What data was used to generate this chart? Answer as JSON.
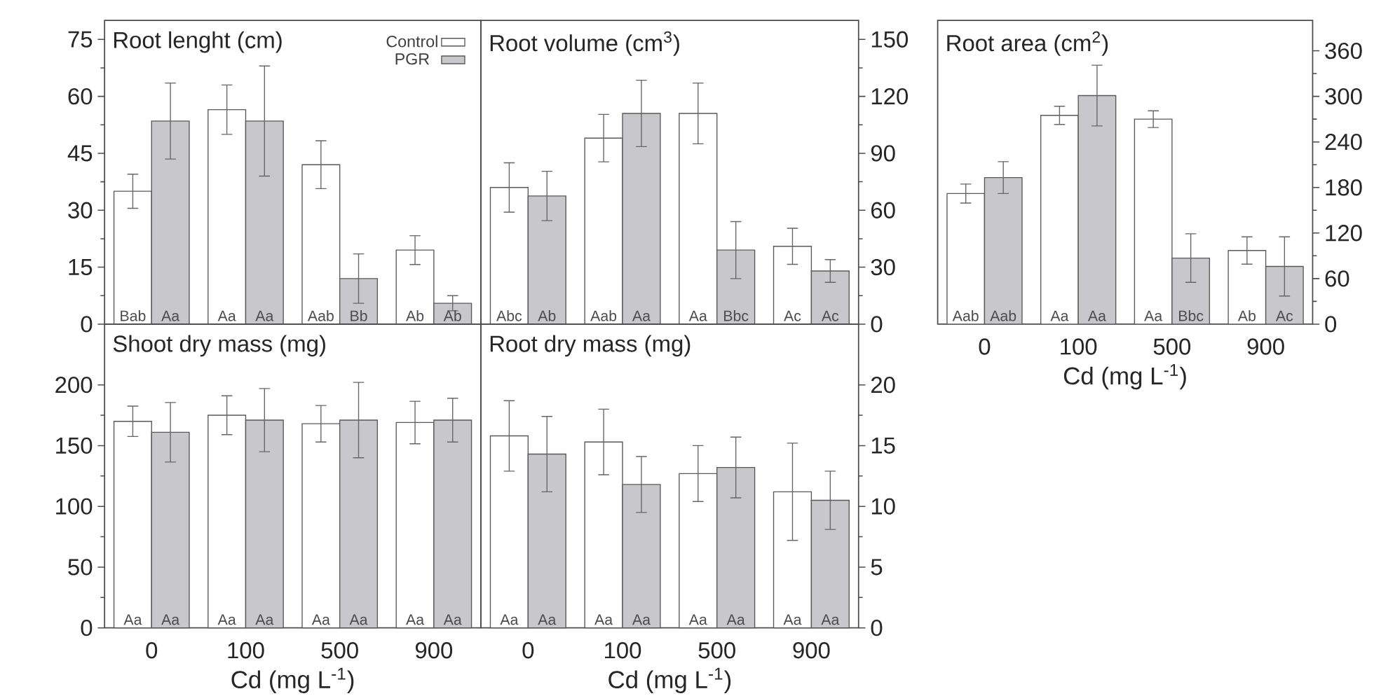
{
  "chart_data": [
    {
      "type": "bar",
      "title": "Root lenght (cm)",
      "categories": [
        "0",
        "100",
        "500",
        "900"
      ],
      "tick_labels": "y",
      "legend": "top right",
      "ylim": [
        0,
        80
      ],
      "yticks": [
        0,
        15,
        30,
        45,
        60,
        75
      ],
      "series": [
        {
          "name": "Control",
          "color": "#ffffff",
          "values": [
            35,
            56.5,
            42,
            19.5
          ],
          "errors": [
            4.5,
            6.5,
            6.3,
            3.8
          ],
          "value_labels": [
            "Bab",
            "Aa",
            "Aab",
            "Ab"
          ]
        },
        {
          "name": "PGR",
          "color": "#c8c8cc",
          "values": [
            53.5,
            53.5,
            12,
            5.5
          ],
          "errors": [
            10,
            14.5,
            6.5,
            2
          ],
          "value_labels": [
            "Aa",
            "Aa",
            "Bb",
            "Ab"
          ]
        }
      ]
    },
    {
      "type": "bar",
      "title": "Root volume (cm$^{3}$)",
      "categories": [
        "0",
        "100",
        "500",
        "900"
      ],
      "tick_labels": "y",
      "y2lim": [
        0,
        160
      ],
      "y2ticks": [
        0,
        30,
        60,
        90,
        120,
        150
      ],
      "series": [
        {
          "color": "#ffffff",
          "axis": "y2",
          "values": [
            72,
            98,
            111,
            41
          ],
          "errors": [
            13,
            12.5,
            16,
            9.5
          ],
          "value_labels": [
            "Abc",
            "Aab",
            "Aa",
            "Ac"
          ]
        },
        {
          "color": "#c8c8cc",
          "axis": "y2",
          "values": [
            67.5,
            111,
            39,
            28
          ],
          "errors": [
            13,
            17.5,
            15,
            6
          ],
          "value_labels": [
            "Ab",
            "Aa",
            "Bbc",
            "Ac"
          ]
        }
      ]
    },
    {
      "type": "bar",
      "title": "Root area (cm$^{2}$)",
      "xlabel": "Cd (mg L$^{-1}$)",
      "categories": [
        "0",
        "100",
        "500",
        "900"
      ],
      "y2lim": [
        0,
        400
      ],
      "y2ticks": [
        0,
        60,
        120,
        180,
        240,
        300,
        360
      ],
      "series": [
        {
          "color": "#ffffff",
          "axis": "y2",
          "values": [
            172,
            275,
            270,
            97
          ],
          "errors": [
            12.5,
            12,
            11,
            18
          ],
          "value_labels": [
            "Aab",
            "Aa",
            "Aa",
            "Ab"
          ]
        },
        {
          "color": "#c8c8cc",
          "axis": "y2",
          "values": [
            193,
            301,
            87,
            76
          ],
          "errors": [
            21,
            40,
            32,
            39
          ],
          "value_labels": [
            "Aab",
            "Aa",
            "Bbc",
            "Ac"
          ]
        }
      ]
    },
    {
      "type": "bar",
      "title": "Shoot dry mass (mg)",
      "xlabel": "Cd (mg L$^{-1}$)",
      "categories": [
        "0",
        "100",
        "500",
        "900"
      ],
      "ylim": [
        0,
        250
      ],
      "yticks": [
        0,
        50,
        100,
        150,
        200
      ],
      "series": [
        {
          "color": "#ffffff",
          "values": [
            170,
            175,
            168,
            169
          ],
          "errors": [
            12.5,
            16,
            15,
            17.5
          ],
          "value_labels": [
            "Aa",
            "Aa",
            "Aa",
            "Aa"
          ]
        },
        {
          "color": "#c8c8cc",
          "values": [
            161,
            171,
            171,
            171
          ],
          "errors": [
            24.5,
            26,
            31,
            18
          ],
          "value_labels": [
            "Aa",
            "Aa",
            "Aa",
            "Aa"
          ]
        }
      ]
    },
    {
      "type": "bar",
      "title": "Root dry mass (mg)",
      "xlabel": "Cd (mg L$^{-1}$)",
      "categories": [
        "0",
        "100",
        "500",
        "900"
      ],
      "y2lim": [
        0,
        25
      ],
      "y2ticks": [
        0,
        5,
        10,
        15,
        20
      ],
      "series": [
        {
          "color": "#ffffff",
          "axis": "y2",
          "values": [
            15.8,
            15.3,
            12.7,
            11.2
          ],
          "errors": [
            2.9,
            2.7,
            2.3,
            4
          ],
          "value_labels": [
            "Aa",
            "Aa",
            "Aa",
            "Aa"
          ]
        },
        {
          "color": "#c8c8cc",
          "axis": "y2",
          "values": [
            14.3,
            11.8,
            13.2,
            10.5
          ],
          "errors": [
            3.1,
            2.3,
            2.5,
            2.4
          ],
          "value_labels": [
            "Aa",
            "Aa",
            "Aa",
            "Aa"
          ]
        }
      ]
    }
  ]
}
